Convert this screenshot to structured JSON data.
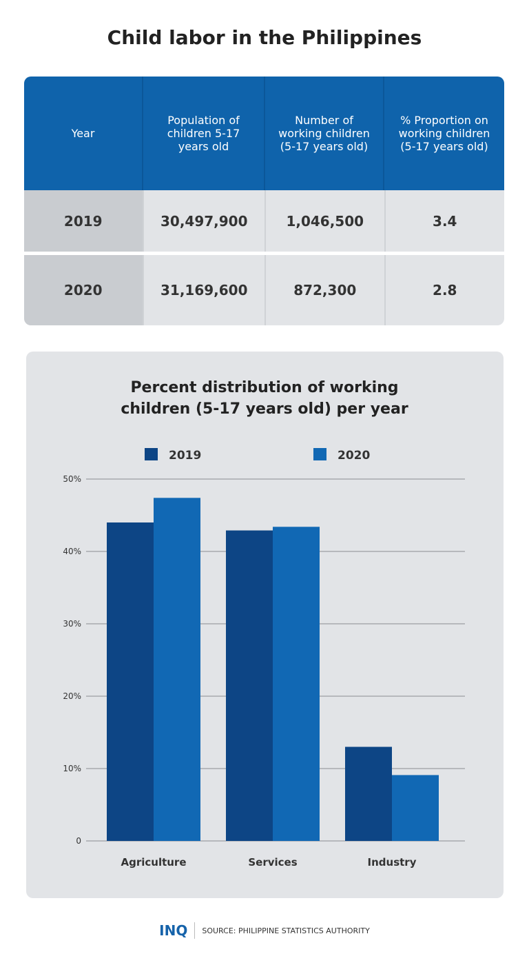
{
  "title": "Child labor in the Philippines",
  "table": {
    "headers": [
      "Year",
      "Population of children 5-17 years old",
      "Number of working children (5-17 years old)",
      "% Proportion on working children (5-17 years old)"
    ],
    "rows": [
      [
        "2019",
        "30,497,900",
        "1,046,500",
        "3.4"
      ],
      [
        "2020",
        "31,169,600",
        "872,300",
        "2.8"
      ]
    ]
  },
  "colors": {
    "2019": "#0d4585",
    "2020": "#1168b4",
    "header": "#0f63ab"
  },
  "chart_data": {
    "type": "bar",
    "title": "Percent distribution of working children (5-17 years old) per year",
    "categories": [
      "Agriculture",
      "Services",
      "Industry"
    ],
    "series": [
      {
        "name": "2019",
        "values": [
          44.0,
          42.9,
          13.0
        ]
      },
      {
        "name": "2020",
        "values": [
          47.4,
          43.4,
          9.1
        ]
      }
    ],
    "ylim": [
      0,
      50
    ],
    "yticks": [
      "0",
      "10%",
      "20%",
      "30%",
      "40%",
      "50%"
    ],
    "grid": true,
    "legend": "top"
  },
  "footer": {
    "logo": "INQ",
    "source": "SOURCE: PHILIPPINE STATISTICS AUTHORITY"
  }
}
